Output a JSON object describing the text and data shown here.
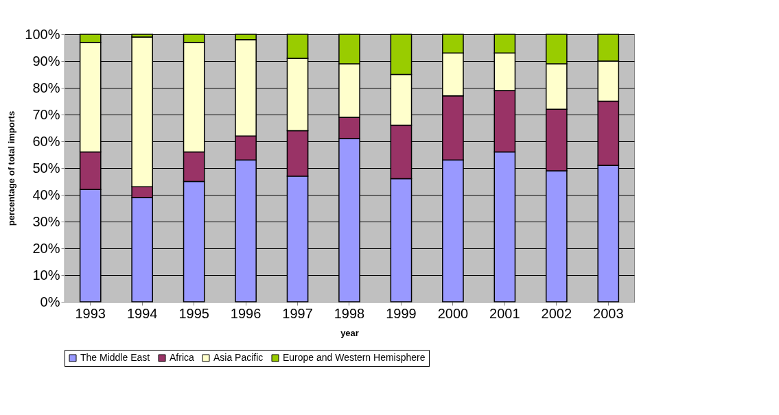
{
  "chart_data": {
    "type": "bar",
    "stacked": true,
    "xlabel": "year",
    "ylabel": "percentage of total imports",
    "categories": [
      "1993",
      "1994",
      "1995",
      "1996",
      "1997",
      "1998",
      "1999",
      "2000",
      "2001",
      "2002",
      "2003"
    ],
    "series": [
      {
        "name": "The Middle East",
        "color": "#9999ff",
        "values": [
          42,
          39,
          45,
          53,
          47,
          61,
          46,
          53,
          56,
          49,
          51
        ]
      },
      {
        "name": "Africa",
        "color": "#993366",
        "values": [
          14,
          4,
          11,
          9,
          17,
          8,
          20,
          24,
          23,
          23,
          24
        ]
      },
      {
        "name": "Asia Pacific",
        "color": "#ffffcc",
        "values": [
          41,
          56,
          41,
          36,
          27,
          20,
          19,
          16,
          14,
          17,
          15
        ]
      },
      {
        "name": "Europe and Western Hemisphere",
        "color": "#99cc00",
        "values": [
          3,
          1,
          3,
          2,
          9,
          11,
          15,
          7,
          7,
          11,
          10
        ]
      }
    ],
    "ylim": [
      0,
      100
    ],
    "yticks": [
      {
        "value": 0,
        "label": "0%"
      },
      {
        "value": 10,
        "label": "10%"
      },
      {
        "value": 20,
        "label": "20%"
      },
      {
        "value": 30,
        "label": "30%"
      },
      {
        "value": 40,
        "label": "40%"
      },
      {
        "value": 50,
        "label": "50%"
      },
      {
        "value": 60,
        "label": "60%"
      },
      {
        "value": 70,
        "label": "70%"
      },
      {
        "value": 80,
        "label": "80%"
      },
      {
        "value": 90,
        "label": "90%"
      },
      {
        "value": 100,
        "label": "100%"
      }
    ],
    "grid": "y",
    "legend": "bottom"
  }
}
